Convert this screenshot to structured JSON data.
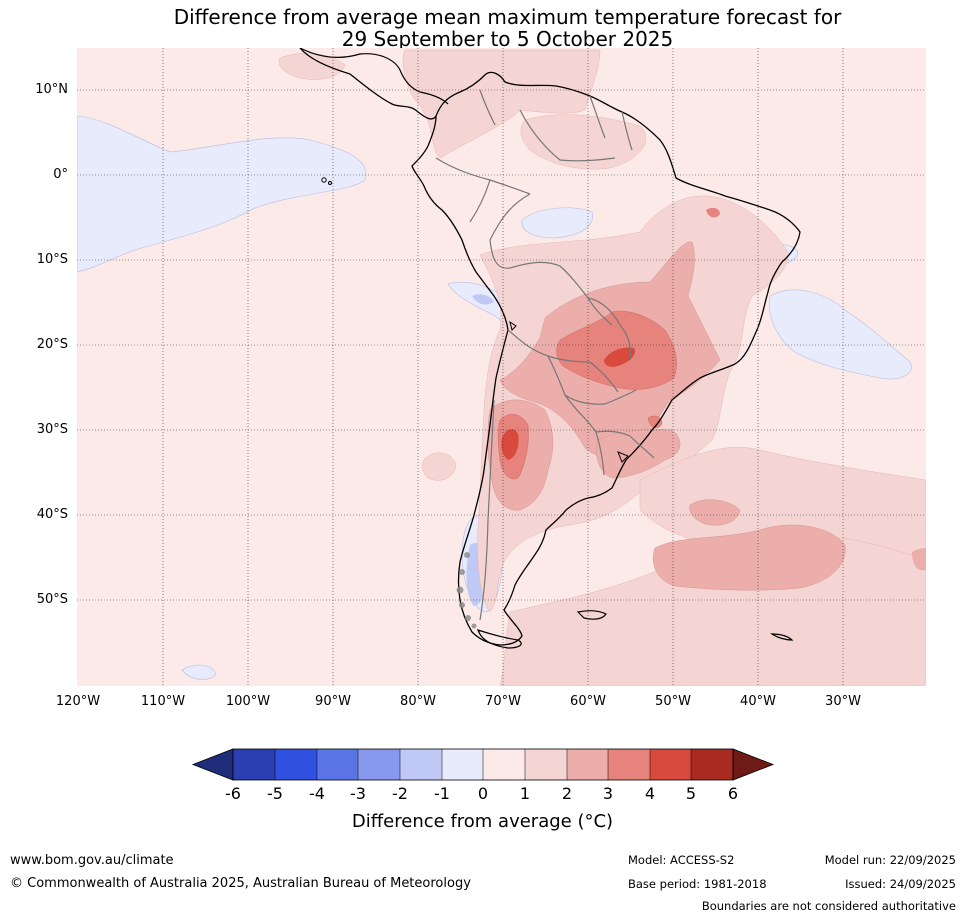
{
  "title": {
    "line1": "Difference from average mean maximum temperature forecast for",
    "line2": "29 September to 5 October 2025"
  },
  "map": {
    "lat_labels": [
      "10°N",
      "0°",
      "10°S",
      "20°S",
      "30°S",
      "40°S",
      "50°S"
    ],
    "lon_labels": [
      "120°W",
      "110°W",
      "100°W",
      "90°W",
      "80°W",
      "70°W",
      "60°W",
      "50°W",
      "40°W",
      "30°W"
    ],
    "region": "South America",
    "colors": {
      "ocean_background": "#fbeae8",
      "land_outline": "#000000",
      "border": "#777777"
    }
  },
  "colorbar": {
    "title": "Difference from average (°C)",
    "ticks": [
      "-6",
      "-5",
      "-4",
      "-3",
      "-2",
      "-1",
      "0",
      "1",
      "2",
      "3",
      "4",
      "5",
      "6"
    ],
    "colors": [
      "#1f2d7a",
      "#2b3fb3",
      "#3050e0",
      "#5c75e6",
      "#8899ed",
      "#c0c8f5",
      "#e8ebfb",
      "#fbeae8",
      "#f5d5d3",
      "#ecaeab",
      "#e5837c",
      "#d94a3e",
      "#a82a21",
      "#6e1a16"
    ]
  },
  "footer": {
    "website": "www.bom.gov.au/climate",
    "copyright": "© Commonwealth of Australia 2025, Australian Bureau of Meteorology",
    "model": "Model: ACCESS-S2",
    "base_period": "Base period: 1981-2018",
    "model_run": "Model run: 22/09/2025",
    "issued": "Issued: 24/09/2025",
    "disclaimer": "Boundaries are not considered authoritative"
  }
}
